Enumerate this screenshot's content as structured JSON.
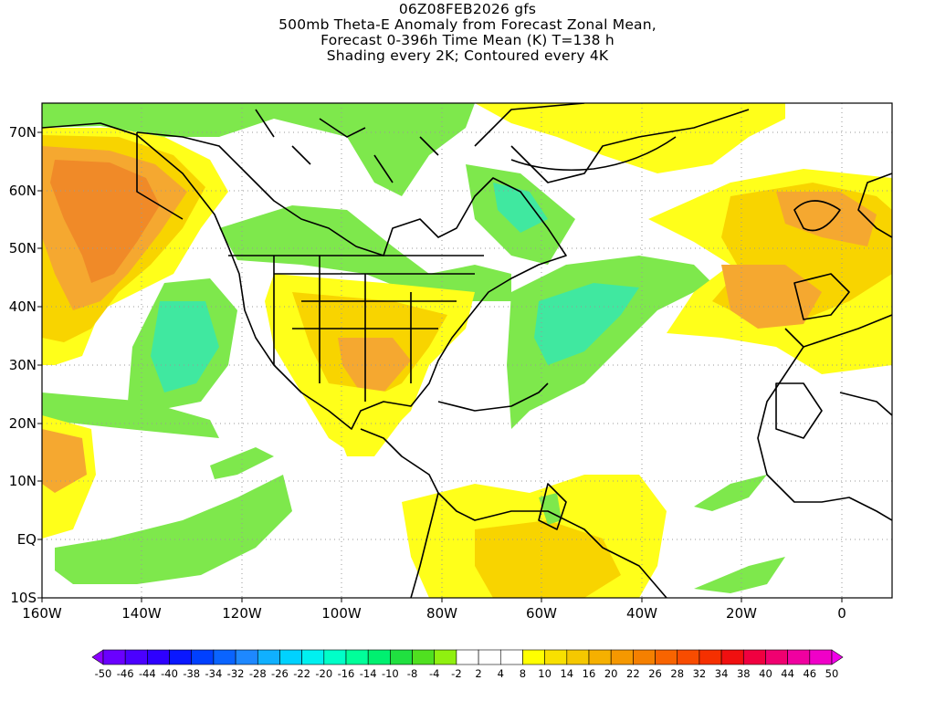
{
  "title_lines": [
    "06Z08FEB2026 gfs",
    "500mb Theta-E Anomaly from Forecast Zonal Mean,",
    "Forecast 0-396h Time Mean (K) T=138 h",
    "Shading every 2K; Contoured every 4K"
  ],
  "map": {
    "lon_range": [
      -160,
      10
    ],
    "lat_range": [
      -10,
      75
    ],
    "x_tick_labels": [
      "160W",
      "140W",
      "120W",
      "100W",
      "80W",
      "60W",
      "40W",
      "20W",
      "0"
    ],
    "y_tick_labels": [
      "70N",
      "60N",
      "50N",
      "40N",
      "30N",
      "20N",
      "10N",
      "EQ",
      "10S"
    ],
    "gridlines": "dotted"
  },
  "colorbar": {
    "labels": [
      "-50",
      "-46",
      "-44",
      "-40",
      "-38",
      "-34",
      "-32",
      "-28",
      "-26",
      "-22",
      "-20",
      "-16",
      "-14",
      "-10",
      "-8",
      "-4",
      "-2",
      "2",
      "4",
      "8",
      "10",
      "14",
      "16",
      "20",
      "22",
      "26",
      "28",
      "32",
      "34",
      "38",
      "40",
      "44",
      "46",
      "50"
    ],
    "colors": [
      "#8a00ff",
      "#6a00ff",
      "#4b00ff",
      "#2e00ff",
      "#0a18ff",
      "#0040ff",
      "#0a64ff",
      "#1e88ff",
      "#10b0ff",
      "#00d2ff",
      "#00f0f0",
      "#00ffc8",
      "#00ff9a",
      "#00f070",
      "#20e040",
      "#50e020",
      "#90f010",
      "#ffffff",
      "#ffffff",
      "#ffffff",
      "#ffff00",
      "#f8e000",
      "#f5c800",
      "#f5b000",
      "#f59800",
      "#f58000",
      "#f86400",
      "#f84c00",
      "#f53000",
      "#f01010",
      "#f00040",
      "#f00070",
      "#f000a0",
      "#f000c8",
      "#f000e8"
    ]
  },
  "shading_colors": {
    "green": "#7ee84c",
    "green_dark": "#4ddc4c",
    "teal": "#40e8a0",
    "yellow": "#ffff1a",
    "gold": "#f8d400",
    "orange": "#f5a830",
    "orange_dark": "#f08a28"
  }
}
